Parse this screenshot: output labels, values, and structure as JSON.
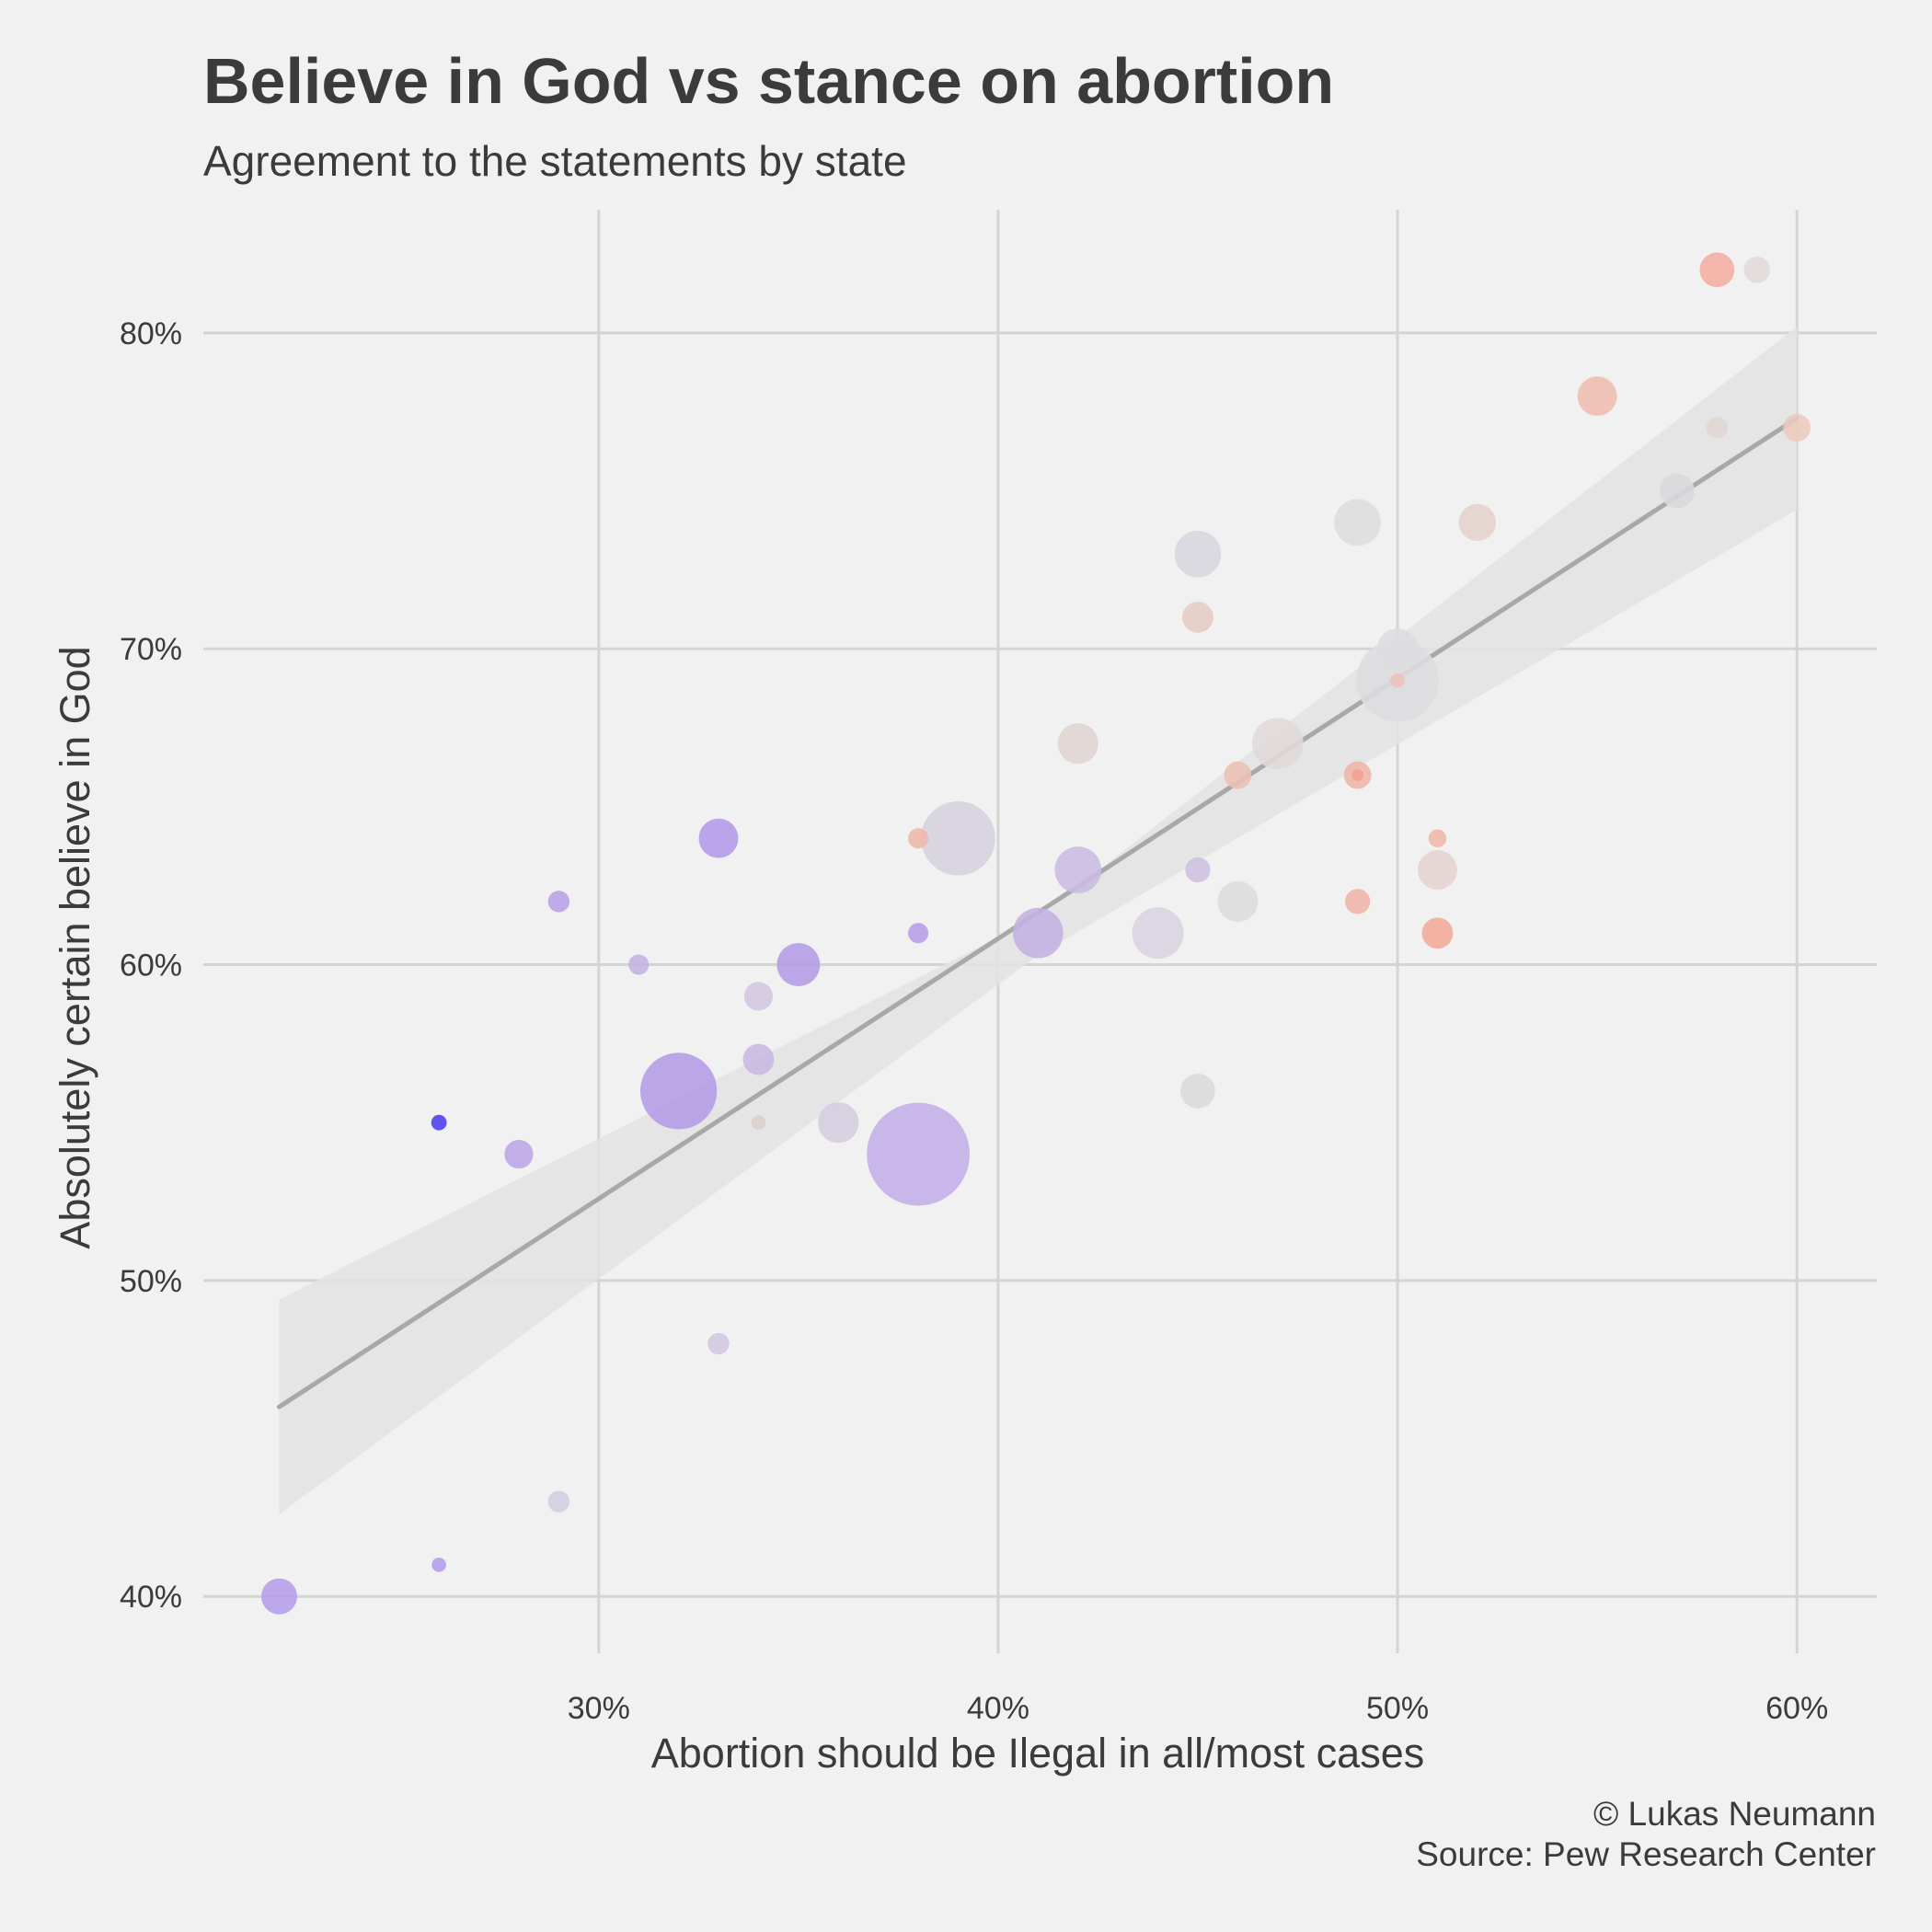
{
  "header": {
    "title": "Believe in God vs stance on abortion",
    "subtitle": "Agreement to the statements by state"
  },
  "caption": {
    "line1": "© Lukas Neumann",
    "line2": "Source: Pew Research Center"
  },
  "chart_data": {
    "type": "scatter",
    "title": "Believe in God vs stance on abortion",
    "subtitle": "Agreement to the statements by state",
    "xlabel": "Abortion should be Ilegal in all/most cases",
    "ylabel": "Absolutely certain believe in God",
    "xlim": [
      20.1,
      62
    ],
    "ylim": [
      38.2,
      83.9
    ],
    "x_ticks": [
      30,
      40,
      50,
      60
    ],
    "y_ticks": [
      40,
      50,
      60,
      70,
      80
    ],
    "x_tick_labels": [
      "30%",
      "40%",
      "50%",
      "60%"
    ],
    "y_tick_labels": [
      "40%",
      "50%",
      "60%",
      "70%",
      "80%"
    ],
    "grid": true,
    "legend": "none",
    "point_size_encodes": "state population (relative)",
    "point_color_encodes": "political lean (blue-purple to red-salmon)",
    "colors": {
      "background": "#f1f1f1",
      "grid": "#d4d4d4",
      "trend_line": "#a8a8a8",
      "confidence_band": "#e3e3e3",
      "dem_strong": "#4b3df0",
      "dem": "#b39be6",
      "lean_dem": "#cdbfe0",
      "swing": "#d7d7d7",
      "lean_rep": "#ddcfcb",
      "rep": "#eeb7ab",
      "rep_strong": "#f1a090"
    },
    "trend": {
      "x": [
        22,
        60
      ],
      "y": [
        46.0,
        77.3
      ]
    },
    "confidence_band": {
      "x": [
        22,
        41,
        60
      ],
      "lower": [
        42.6,
        60.3,
        74.4
      ],
      "upper": [
        49.4,
        61.5,
        80.2
      ]
    },
    "points": [
      {
        "x": 22,
        "y": 40,
        "size": 3.0,
        "color": "#b49de8"
      },
      {
        "x": 26,
        "y": 41,
        "size": 1.2,
        "color": "#b29be8"
      },
      {
        "x": 26,
        "y": 55,
        "size": 1.3,
        "color": "#4b3df0"
      },
      {
        "x": 28,
        "y": 54,
        "size": 2.4,
        "color": "#bba5e5"
      },
      {
        "x": 29,
        "y": 62,
        "size": 1.8,
        "color": "#b7a1e6"
      },
      {
        "x": 29,
        "y": 43,
        "size": 1.8,
        "color": "#d4cbe0"
      },
      {
        "x": 31,
        "y": 60,
        "size": 1.7,
        "color": "#c2b0e3"
      },
      {
        "x": 32,
        "y": 56,
        "size": 6.4,
        "color": "#b39be6"
      },
      {
        "x": 33,
        "y": 64,
        "size": 3.3,
        "color": "#b29ae8"
      },
      {
        "x": 33,
        "y": 48,
        "size": 1.8,
        "color": "#d2c6e0"
      },
      {
        "x": 34,
        "y": 59,
        "size": 2.4,
        "color": "#d2c6e0"
      },
      {
        "x": 34,
        "y": 57,
        "size": 2.6,
        "color": "#c8b8e1"
      },
      {
        "x": 34,
        "y": 55,
        "size": 1.2,
        "color": "#ddcfcb"
      },
      {
        "x": 35,
        "y": 60,
        "size": 3.6,
        "color": "#b39be6"
      },
      {
        "x": 36,
        "y": 55,
        "size": 3.4,
        "color": "#d4ccdf"
      },
      {
        "x": 38,
        "y": 54,
        "size": 8.6,
        "color": "#c1aee6"
      },
      {
        "x": 38,
        "y": 64,
        "size": 1.7,
        "color": "#eeb7ab"
      },
      {
        "x": 38,
        "y": 61,
        "size": 1.7,
        "color": "#b59ee7"
      },
      {
        "x": 39,
        "y": 64,
        "size": 6.2,
        "color": "#d6d2de"
      },
      {
        "x": 41,
        "y": 61,
        "size": 4.2,
        "color": "#c2b1e3"
      },
      {
        "x": 42,
        "y": 63,
        "size": 3.9,
        "color": "#c9bbe2"
      },
      {
        "x": 42,
        "y": 67,
        "size": 3.4,
        "color": "#dfd4d1"
      },
      {
        "x": 44,
        "y": 61,
        "size": 4.3,
        "color": "#d8d3df"
      },
      {
        "x": 45,
        "y": 73,
        "size": 3.9,
        "color": "#d8d6de"
      },
      {
        "x": 45,
        "y": 71,
        "size": 2.6,
        "color": "#e4cbc4"
      },
      {
        "x": 45,
        "y": 63,
        "size": 2.1,
        "color": "#cdbfe0"
      },
      {
        "x": 45,
        "y": 56,
        "size": 2.9,
        "color": "#d9d9db"
      },
      {
        "x": 46,
        "y": 66,
        "size": 2.3,
        "color": "#ecbfb4"
      },
      {
        "x": 46,
        "y": 62,
        "size": 3.4,
        "color": "#dcdcdc"
      },
      {
        "x": 47,
        "y": 67,
        "size": 4.3,
        "color": "#e0dbd9"
      },
      {
        "x": 49,
        "y": 74,
        "size": 3.9,
        "color": "#dddddd"
      },
      {
        "x": 49,
        "y": 66,
        "size": 2.3,
        "color": "#efb3a6"
      },
      {
        "x": 49,
        "y": 66,
        "size": 1.0,
        "color": "#f4a090"
      },
      {
        "x": 49,
        "y": 62,
        "size": 2.1,
        "color": "#efb3a6"
      },
      {
        "x": 50,
        "y": 69,
        "size": 6.9,
        "color": "#dddddf"
      },
      {
        "x": 50,
        "y": 70,
        "size": 3.4,
        "color": "#dddddf"
      },
      {
        "x": 50,
        "y": 69,
        "size": 1.2,
        "color": "#ecc3ba"
      },
      {
        "x": 51,
        "y": 64,
        "size": 1.5,
        "color": "#eeb7ab"
      },
      {
        "x": 51,
        "y": 63,
        "size": 3.3,
        "color": "#e4d3cf"
      },
      {
        "x": 51,
        "y": 61,
        "size": 2.6,
        "color": "#f1a999"
      },
      {
        "x": 52,
        "y": 74,
        "size": 3.1,
        "color": "#e3d1cc"
      },
      {
        "x": 55,
        "y": 78,
        "size": 3.3,
        "color": "#eebcaf"
      },
      {
        "x": 57,
        "y": 75,
        "size": 2.9,
        "color": "#d9d9dd"
      },
      {
        "x": 58,
        "y": 82,
        "size": 2.9,
        "color": "#f1ae9f"
      },
      {
        "x": 58,
        "y": 77,
        "size": 1.8,
        "color": "#e1d6d3"
      },
      {
        "x": 59,
        "y": 82,
        "size": 2.2,
        "color": "#e0dadb"
      },
      {
        "x": 60,
        "y": 77,
        "size": 2.3,
        "color": "#eccabf"
      }
    ]
  }
}
